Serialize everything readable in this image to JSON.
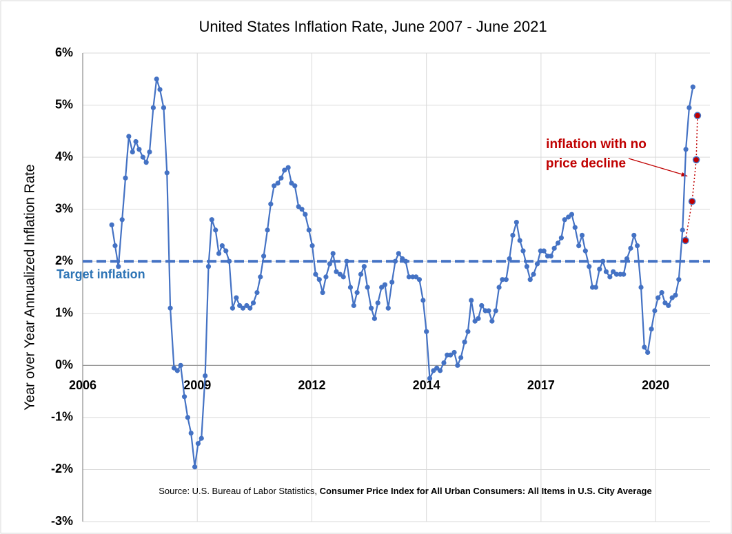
{
  "chart_data": {
    "type": "line",
    "title": "United States Inflation Rate, June 2007 - June 2021",
    "y_label": "Year over Year Annualized Inflation Rate",
    "source": "Source: U.S. Bureau of Labor Statistics, ",
    "source_bold": "Consumer Price Index for All Urban Consumers: All Items in U.S. City Average",
    "annotation": [
      "inflation with no",
      "price decline"
    ],
    "target": {
      "label": "Target inflation",
      "value": 2,
      "color": "#4472c4"
    },
    "xlim": [
      2006.72,
      2021.83
    ],
    "xticks": [
      {
        "value": 2006.72,
        "label": "2006"
      },
      {
        "value": 2009.48,
        "label": "2009"
      },
      {
        "value": 2012.24,
        "label": "2012"
      },
      {
        "value": 2015.0,
        "label": "2014"
      },
      {
        "value": 2017.76,
        "label": "2017"
      },
      {
        "value": 2020.52,
        "label": "2020"
      }
    ],
    "ylim": [
      -3,
      6
    ],
    "yticks": [
      {
        "value": -3,
        "label": "-3%"
      },
      {
        "value": -2,
        "label": "-2%"
      },
      {
        "value": -1,
        "label": "-1%"
      },
      {
        "value": 0,
        "label": "0%"
      },
      {
        "value": 1,
        "label": "1%"
      },
      {
        "value": 2,
        "label": "2%"
      },
      {
        "value": 3,
        "label": "3%"
      },
      {
        "value": 4,
        "label": "4%"
      },
      {
        "value": 5,
        "label": "5%"
      },
      {
        "value": 6,
        "label": "6%"
      }
    ],
    "grid": true,
    "series": [
      {
        "color": "#4472c4",
        "x": [
          2007.42,
          2007.5,
          2007.58,
          2007.67,
          2007.75,
          2007.83,
          2007.92,
          2008.0,
          2008.08,
          2008.17,
          2008.25,
          2008.33,
          2008.42,
          2008.5,
          2008.58,
          2008.67,
          2008.75,
          2008.83,
          2008.92,
          2009.0,
          2009.08,
          2009.17,
          2009.25,
          2009.33,
          2009.42,
          2009.5,
          2009.58,
          2009.67,
          2009.75,
          2009.83,
          2009.92,
          2010.0,
          2010.08,
          2010.17,
          2010.25,
          2010.33,
          2010.42,
          2010.5,
          2010.58,
          2010.67,
          2010.75,
          2010.83,
          2010.92,
          2011.0,
          2011.08,
          2011.17,
          2011.25,
          2011.33,
          2011.42,
          2011.5,
          2011.58,
          2011.67,
          2011.75,
          2011.83,
          2011.92,
          2012.0,
          2012.08,
          2012.17,
          2012.25,
          2012.33,
          2012.42,
          2012.5,
          2012.58,
          2012.67,
          2012.75,
          2012.83,
          2012.92,
          2013.0,
          2013.08,
          2013.17,
          2013.25,
          2013.33,
          2013.42,
          2013.5,
          2013.58,
          2013.67,
          2013.75,
          2013.83,
          2013.92,
          2014.0,
          2014.08,
          2014.17,
          2014.25,
          2014.33,
          2014.42,
          2014.5,
          2014.58,
          2014.67,
          2014.75,
          2014.83,
          2014.92,
          2015.0,
          2015.08,
          2015.17,
          2015.25,
          2015.33,
          2015.42,
          2015.5,
          2015.58,
          2015.67,
          2015.75,
          2015.83,
          2015.92,
          2016.0,
          2016.08,
          2016.17,
          2016.25,
          2016.33,
          2016.42,
          2016.5,
          2016.58,
          2016.67,
          2016.75,
          2016.83,
          2016.92,
          2017.0,
          2017.08,
          2017.17,
          2017.25,
          2017.33,
          2017.42,
          2017.5,
          2017.58,
          2017.67,
          2017.75,
          2017.83,
          2017.92,
          2018.0,
          2018.08,
          2018.17,
          2018.25,
          2018.33,
          2018.42,
          2018.5,
          2018.58,
          2018.67,
          2018.75,
          2018.83,
          2018.92,
          2019.0,
          2019.08,
          2019.17,
          2019.25,
          2019.33,
          2019.42,
          2019.5,
          2019.58,
          2019.67,
          2019.75,
          2019.83,
          2019.92,
          2020.0,
          2020.08,
          2020.17,
          2020.25,
          2020.33,
          2020.42,
          2020.5,
          2020.58,
          2020.67,
          2020.75,
          2020.83,
          2020.92,
          2021.0,
          2021.08,
          2021.17,
          2021.25,
          2021.33,
          2021.42
        ],
        "values": [
          2.7,
          2.3,
          1.9,
          2.8,
          3.6,
          4.4,
          4.1,
          4.3,
          4.15,
          4.0,
          3.9,
          4.1,
          4.95,
          5.5,
          5.3,
          4.95,
          3.7,
          1.1,
          -0.05,
          -0.1,
          0.0,
          -0.6,
          -1.0,
          -1.3,
          -1.95,
          -1.5,
          -1.4,
          -0.2,
          1.9,
          2.8,
          2.6,
          2.15,
          2.3,
          2.2,
          2.0,
          1.1,
          1.3,
          1.15,
          1.1,
          1.15,
          1.1,
          1.2,
          1.4,
          1.7,
          2.1,
          2.6,
          3.1,
          3.45,
          3.5,
          3.6,
          3.75,
          3.8,
          3.5,
          3.45,
          3.05,
          3.0,
          2.9,
          2.6,
          2.3,
          1.75,
          1.65,
          1.4,
          1.7,
          1.95,
          2.15,
          1.8,
          1.75,
          1.7,
          2.0,
          1.5,
          1.15,
          1.4,
          1.75,
          1.9,
          1.5,
          1.1,
          0.9,
          1.2,
          1.5,
          1.55,
          1.1,
          1.6,
          2.0,
          2.15,
          2.05,
          2.0,
          1.7,
          1.7,
          1.7,
          1.65,
          1.25,
          0.65,
          -0.25,
          -0.1,
          -0.05,
          -0.1,
          0.05,
          0.2,
          0.2,
          0.25,
          0.0,
          0.15,
          0.45,
          0.65,
          1.25,
          0.85,
          0.9,
          1.15,
          1.05,
          1.05,
          0.85,
          1.05,
          1.5,
          1.65,
          1.65,
          2.05,
          2.5,
          2.75,
          2.4,
          2.2,
          1.9,
          1.65,
          1.75,
          1.95,
          2.2,
          2.2,
          2.1,
          2.1,
          2.25,
          2.35,
          2.45,
          2.8,
          2.85,
          2.9,
          2.65,
          2.3,
          2.5,
          2.2,
          1.9,
          1.5,
          1.5,
          1.85,
          2.0,
          1.8,
          1.7,
          1.8,
          1.75,
          1.75,
          1.75,
          2.05,
          2.25,
          2.5,
          2.3,
          1.5,
          0.35,
          0.25,
          0.7,
          1.05,
          1.3,
          1.4,
          1.2,
          1.15,
          1.3,
          1.35,
          1.65,
          2.6,
          4.15,
          4.95,
          5.35
        ]
      },
      {
        "color": "#c00000",
        "x": [
          2021.24,
          2021.4,
          2021.5,
          2021.53
        ],
        "values": [
          2.4,
          3.15,
          3.95,
          4.8
        ]
      }
    ]
  }
}
